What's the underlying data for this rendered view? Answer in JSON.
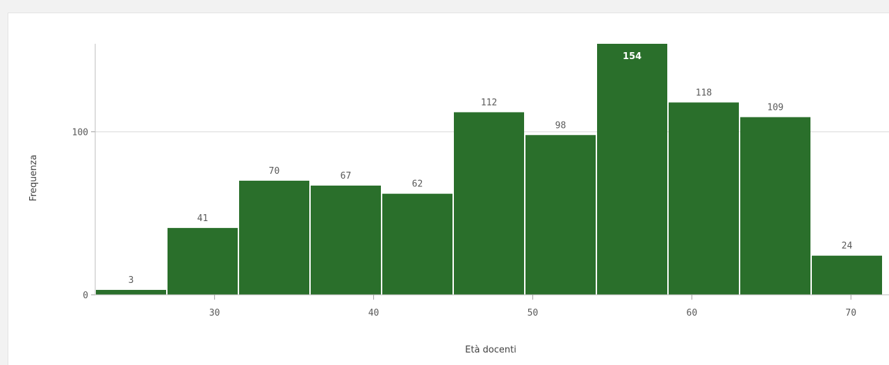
{
  "chart_data": {
    "type": "bar",
    "subtype": "histogram",
    "xlabel": "Età docenti",
    "ylabel": "Frequenza",
    "bins": [
      {
        "start": 22.5,
        "end": 27.0,
        "value": 3
      },
      {
        "start": 27.0,
        "end": 31.5,
        "value": 41
      },
      {
        "start": 31.5,
        "end": 36.0,
        "value": 70
      },
      {
        "start": 36.0,
        "end": 40.5,
        "value": 67
      },
      {
        "start": 40.5,
        "end": 45.0,
        "value": 62
      },
      {
        "start": 45.0,
        "end": 49.5,
        "value": 112
      },
      {
        "start": 49.5,
        "end": 54.0,
        "value": 98
      },
      {
        "start": 54.0,
        "end": 58.5,
        "value": 154
      },
      {
        "start": 58.5,
        "end": 63.0,
        "value": 118
      },
      {
        "start": 63.0,
        "end": 67.5,
        "value": 109
      },
      {
        "start": 67.5,
        "end": 72.0,
        "value": 24
      }
    ],
    "x_ticks": [
      "30",
      "40",
      "50",
      "60",
      "70"
    ],
    "y_ticks": [
      "0",
      "100"
    ],
    "xlim": [
      22.5,
      72.0
    ],
    "ylim": [
      0,
      154
    ],
    "grid": "horizontal at 100",
    "legend": "none",
    "bar_color": "#2a6f2b",
    "label_color": "#595959",
    "highlight_label_color": "#ffffff"
  }
}
